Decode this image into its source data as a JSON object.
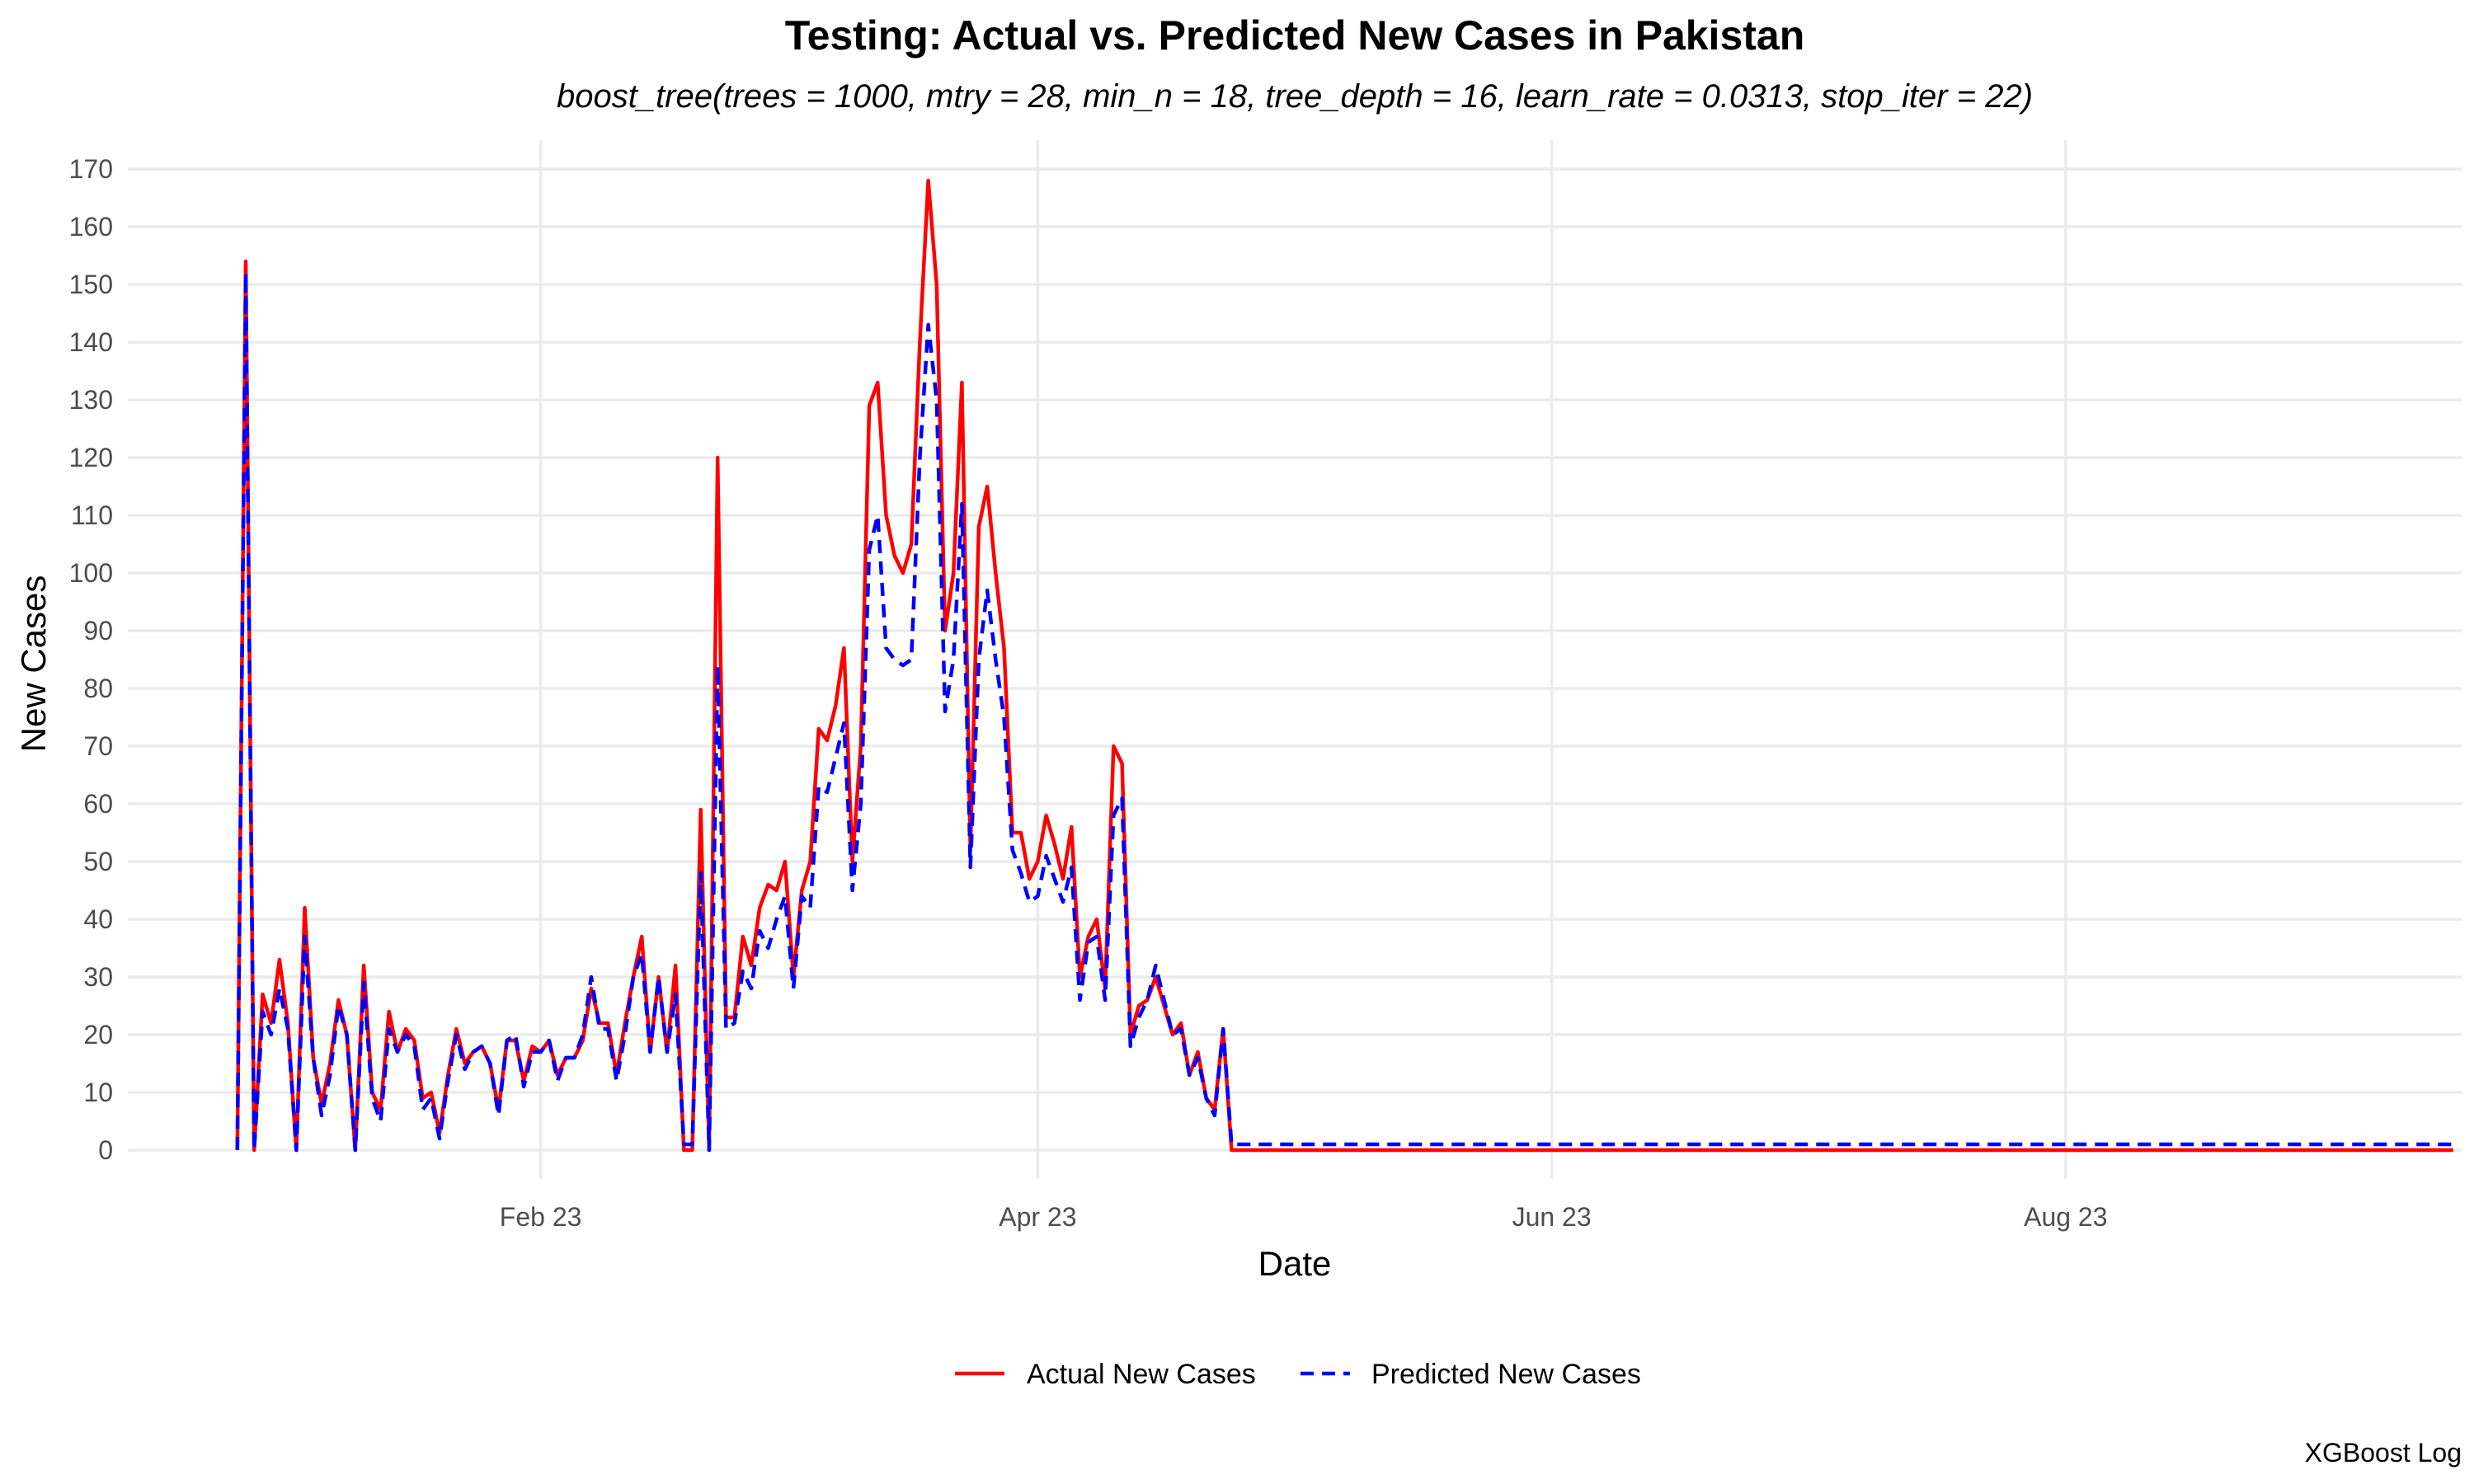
{
  "chart_data": {
    "type": "line",
    "title": "Testing: Actual vs. Predicted New Cases in Pakistan",
    "subtitle": "boost_tree(trees = 1000, mtry = 28, min_n = 18, tree_depth = 16, learn_rate = 0.0313, stop_iter = 22)",
    "xlabel": "Date",
    "ylabel": "New Cases",
    "caption": "XGBoost Log",
    "x_start_date": "2023-01-04",
    "x_ticks": [
      {
        "label": "Feb 23",
        "day": 49
      },
      {
        "label": "Apr 23",
        "day": 108
      },
      {
        "label": "Jun 23",
        "day": 169
      },
      {
        "label": "Aug 23",
        "day": 230
      }
    ],
    "xlim_days": [
      0,
      277
    ],
    "ylim": [
      -5,
      175
    ],
    "y_ticks": [
      0,
      10,
      20,
      30,
      40,
      50,
      60,
      70,
      80,
      90,
      100,
      110,
      120,
      130,
      140,
      150,
      160,
      170
    ],
    "grid": true,
    "legend_position": "bottom",
    "series": [
      {
        "name": "Actual New Cases",
        "color": "#ff0000",
        "dash": "solid",
        "points": [
          [
            13,
            0
          ],
          [
            14,
            154
          ],
          [
            15,
            0
          ],
          [
            16,
            27
          ],
          [
            17,
            22
          ],
          [
            18,
            33
          ],
          [
            19,
            22
          ],
          [
            20,
            0
          ],
          [
            21,
            42
          ],
          [
            22,
            16
          ],
          [
            23,
            8
          ],
          [
            24,
            15
          ],
          [
            25,
            26
          ],
          [
            26,
            20
          ],
          [
            27,
            0
          ],
          [
            28,
            32
          ],
          [
            29,
            10
          ],
          [
            30,
            7
          ],
          [
            31,
            24
          ],
          [
            32,
            17
          ],
          [
            33,
            21
          ],
          [
            34,
            19
          ],
          [
            35,
            9
          ],
          [
            36,
            10
          ],
          [
            37,
            3
          ],
          [
            38,
            13
          ],
          [
            39,
            21
          ],
          [
            40,
            15
          ],
          [
            41,
            17
          ],
          [
            42,
            18
          ],
          [
            43,
            15
          ],
          [
            44,
            7
          ],
          [
            45,
            19
          ],
          [
            46,
            19
          ],
          [
            47,
            12
          ],
          [
            48,
            18
          ],
          [
            49,
            17
          ],
          [
            50,
            19
          ],
          [
            51,
            13
          ],
          [
            52,
            16
          ],
          [
            53,
            16
          ],
          [
            54,
            19
          ],
          [
            55,
            28
          ],
          [
            56,
            22
          ],
          [
            57,
            22
          ],
          [
            58,
            13
          ],
          [
            59,
            22
          ],
          [
            60,
            30
          ],
          [
            61,
            37
          ],
          [
            62,
            17
          ],
          [
            63,
            30
          ],
          [
            64,
            17
          ],
          [
            65,
            32
          ],
          [
            66,
            0
          ],
          [
            67,
            0
          ],
          [
            68,
            59
          ],
          [
            69,
            0
          ],
          [
            70,
            120
          ],
          [
            71,
            23
          ],
          [
            72,
            23
          ],
          [
            73,
            37
          ],
          [
            74,
            32
          ],
          [
            75,
            42
          ],
          [
            76,
            46
          ],
          [
            77,
            45
          ],
          [
            78,
            50
          ],
          [
            79,
            30
          ],
          [
            80,
            45
          ],
          [
            81,
            50
          ],
          [
            82,
            73
          ],
          [
            83,
            71
          ],
          [
            84,
            77
          ],
          [
            85,
            87
          ],
          [
            86,
            50
          ],
          [
            87,
            70
          ],
          [
            88,
            129
          ],
          [
            89,
            133
          ],
          [
            90,
            110
          ],
          [
            91,
            103
          ],
          [
            92,
            100
          ],
          [
            93,
            105
          ],
          [
            94,
            140
          ],
          [
            95,
            168
          ],
          [
            96,
            150
          ],
          [
            97,
            90
          ],
          [
            98,
            100
          ],
          [
            99,
            133
          ],
          [
            100,
            52
          ],
          [
            101,
            108
          ],
          [
            102,
            115
          ],
          [
            103,
            100
          ],
          [
            104,
            87
          ],
          [
            105,
            55
          ],
          [
            106,
            55
          ],
          [
            107,
            47
          ],
          [
            108,
            50
          ],
          [
            109,
            58
          ],
          [
            110,
            53
          ],
          [
            111,
            47
          ],
          [
            112,
            56
          ],
          [
            113,
            30
          ],
          [
            114,
            37
          ],
          [
            115,
            40
          ],
          [
            116,
            28
          ],
          [
            117,
            70
          ],
          [
            118,
            67
          ],
          [
            119,
            20
          ],
          [
            120,
            25
          ],
          [
            121,
            26
          ],
          [
            122,
            30
          ],
          [
            123,
            25
          ],
          [
            124,
            20
          ],
          [
            125,
            22
          ],
          [
            126,
            13
          ],
          [
            127,
            17
          ],
          [
            128,
            9
          ],
          [
            129,
            7
          ],
          [
            130,
            21
          ],
          [
            131,
            0
          ],
          [
            276,
            0
          ]
        ]
      },
      {
        "name": "Predicted New Cases",
        "color": "#0000ff",
        "dash": "dashed",
        "points": [
          [
            13,
            0
          ],
          [
            14,
            152
          ],
          [
            15,
            0
          ],
          [
            16,
            24
          ],
          [
            17,
            20
          ],
          [
            18,
            28
          ],
          [
            19,
            21
          ],
          [
            20,
            0
          ],
          [
            21,
            37
          ],
          [
            22,
            16
          ],
          [
            23,
            6
          ],
          [
            24,
            13
          ],
          [
            25,
            25
          ],
          [
            26,
            20
          ],
          [
            27,
            0
          ],
          [
            28,
            29
          ],
          [
            29,
            9
          ],
          [
            30,
            5
          ],
          [
            31,
            21
          ],
          [
            32,
            17
          ],
          [
            33,
            20
          ],
          [
            34,
            18
          ],
          [
            35,
            7
          ],
          [
            36,
            9
          ],
          [
            37,
            2
          ],
          [
            38,
            12
          ],
          [
            39,
            20
          ],
          [
            40,
            14
          ],
          [
            41,
            17
          ],
          [
            42,
            18
          ],
          [
            43,
            15
          ],
          [
            44,
            6
          ],
          [
            45,
            19
          ],
          [
            46,
            20
          ],
          [
            47,
            11
          ],
          [
            48,
            17
          ],
          [
            49,
            17
          ],
          [
            50,
            19
          ],
          [
            51,
            12
          ],
          [
            52,
            16
          ],
          [
            53,
            16
          ],
          [
            54,
            20
          ],
          [
            55,
            30
          ],
          [
            56,
            21
          ],
          [
            57,
            21
          ],
          [
            58,
            12
          ],
          [
            59,
            20
          ],
          [
            60,
            30
          ],
          [
            61,
            34
          ],
          [
            62,
            17
          ],
          [
            63,
            30
          ],
          [
            64,
            17
          ],
          [
            65,
            27
          ],
          [
            66,
            1
          ],
          [
            67,
            1
          ],
          [
            68,
            48
          ],
          [
            69,
            0
          ],
          [
            70,
            84
          ],
          [
            71,
            21
          ],
          [
            72,
            22
          ],
          [
            73,
            31
          ],
          [
            74,
            28
          ],
          [
            75,
            38
          ],
          [
            76,
            35
          ],
          [
            77,
            40
          ],
          [
            78,
            44
          ],
          [
            79,
            28
          ],
          [
            80,
            44
          ],
          [
            81,
            42
          ],
          [
            82,
            63
          ],
          [
            83,
            62
          ],
          [
            84,
            68
          ],
          [
            85,
            74
          ],
          [
            86,
            45
          ],
          [
            87,
            60
          ],
          [
            88,
            104
          ],
          [
            89,
            110
          ],
          [
            90,
            87
          ],
          [
            91,
            85
          ],
          [
            92,
            84
          ],
          [
            93,
            85
          ],
          [
            94,
            120
          ],
          [
            95,
            143
          ],
          [
            96,
            130
          ],
          [
            97,
            76
          ],
          [
            98,
            85
          ],
          [
            99,
            112
          ],
          [
            100,
            49
          ],
          [
            101,
            85
          ],
          [
            102,
            97
          ],
          [
            103,
            85
          ],
          [
            104,
            75
          ],
          [
            105,
            52
          ],
          [
            106,
            48
          ],
          [
            107,
            43
          ],
          [
            108,
            44
          ],
          [
            109,
            51
          ],
          [
            110,
            47
          ],
          [
            111,
            43
          ],
          [
            112,
            49
          ],
          [
            113,
            26
          ],
          [
            114,
            36
          ],
          [
            115,
            37
          ],
          [
            116,
            26
          ],
          [
            117,
            58
          ],
          [
            118,
            61
          ],
          [
            119,
            18
          ],
          [
            120,
            23
          ],
          [
            121,
            26
          ],
          [
            122,
            32
          ],
          [
            123,
            26
          ],
          [
            124,
            20
          ],
          [
            125,
            21
          ],
          [
            126,
            13
          ],
          [
            127,
            16
          ],
          [
            128,
            9
          ],
          [
            129,
            6
          ],
          [
            130,
            21
          ],
          [
            131,
            1
          ],
          [
            276,
            1
          ]
        ]
      }
    ]
  }
}
